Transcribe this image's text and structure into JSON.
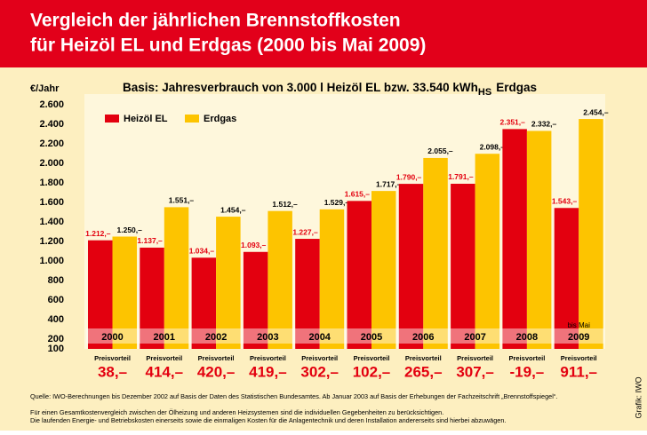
{
  "chart_data": {
    "type": "bar",
    "title": [
      "Vergleich der jährlichen Brennstoffkosten",
      "für Heizöl EL und Erdgas (2000 bis Mai 2009)"
    ],
    "subtitle": "Basis: Jahresverbrauch von 3.000 l Heizöl EL bzw. 33.540 kWh",
    "subtitle_subscript": "HS",
    "subtitle_end": "Erdgas",
    "y_label": "€/Jahr",
    "categories": [
      "2000",
      "2001",
      "2002",
      "2003",
      "2004",
      "2005",
      "2006",
      "2007",
      "2008",
      "2009"
    ],
    "category_notes": [
      null,
      null,
      null,
      null,
      null,
      null,
      null,
      null,
      null,
      "bis Mai"
    ],
    "series": [
      {
        "name": "Heizöl EL",
        "color": "#e3000f",
        "values": [
          1212,
          1137,
          1034,
          1093,
          1227,
          1615,
          1790,
          1791,
          2351,
          1543
        ],
        "value_labels": [
          "1.212,–",
          "1.137,–",
          "1.034,–",
          "1.093,–",
          "1.227,–",
          "1.615,–",
          "1.790,–",
          "1.791,–",
          "2.351,–",
          "1.543,–"
        ]
      },
      {
        "name": "Erdgas",
        "color": "#fdc400",
        "values": [
          1250,
          1551,
          1454,
          1512,
          1529,
          1717,
          2055,
          2098,
          2332,
          2454
        ],
        "value_labels": [
          "1.250,–",
          "1.551,–",
          "1.454,–",
          "1.512,–",
          "1.529,–",
          "1.717,–",
          "2.055,–",
          "2.098,–",
          "2.332,–",
          "2.454,–"
        ]
      }
    ],
    "ylim": [
      100,
      2600
    ],
    "yticks": [
      {
        "value": 100,
        "label": "100"
      },
      {
        "value": 200,
        "label": "200"
      },
      {
        "value": 400,
        "label": "400"
      },
      {
        "value": 600,
        "label": "600"
      },
      {
        "value": 800,
        "label": "800"
      },
      {
        "value": 1000,
        "label": "1.000"
      },
      {
        "value": 1200,
        "label": "1.200"
      },
      {
        "value": 1400,
        "label": "1.400"
      },
      {
        "value": 1600,
        "label": "1.600"
      },
      {
        "value": 1800,
        "label": "1.800"
      },
      {
        "value": 2000,
        "label": "2.000"
      },
      {
        "value": 2200,
        "label": "2.200"
      },
      {
        "value": 2400,
        "label": "2.400"
      },
      {
        "value": 2600,
        "label": "2.600"
      }
    ],
    "advantage": {
      "label": "Preisvorteil",
      "values": [
        38,
        414,
        420,
        419,
        302,
        102,
        265,
        307,
        -19,
        911
      ],
      "value_labels": [
        "38,–",
        "414,–",
        "420,–",
        "419,–",
        "302,–",
        "102,–",
        "265,–",
        "307,–",
        "-19,–",
        "911,–"
      ]
    },
    "source": "Quelle: IWO-Berechnungen bis Dezember 2002 auf Basis der Daten des Statistischen Bundesamtes. Ab Januar 2003 auf Basis der Erhebungen der Fachzeitschrift „Brennstoffspiegel“.",
    "notes": [
      "Für einen Gesamtkostenvergleich zwischen der Ölheizung und anderen Heizsystemen sind die individuellen Gegebenheiten zu berücksichtigen.",
      "Die laufenden Energie- und Betriebskosten einerseits sowie die einmaligen Kosten für die Anlagentechnik und deren Installation andererseits sind hierbei abzuwägen."
    ],
    "credit": "Grafik: IWO"
  }
}
